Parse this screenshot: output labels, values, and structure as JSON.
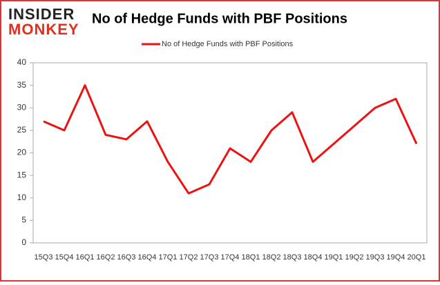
{
  "logo": {
    "line1": "INSIDER",
    "line2": "MONKEY"
  },
  "chart_data": {
    "type": "line",
    "title": "No of Hedge Funds with PBF Positions",
    "categories": [
      "15Q3",
      "15Q4",
      "16Q1",
      "16Q2",
      "16Q3",
      "16Q4",
      "17Q1",
      "17Q2",
      "17Q3",
      "17Q4",
      "18Q1",
      "18Q2",
      "18Q3",
      "18Q4",
      "19Q1",
      "19Q2",
      "19Q3",
      "19Q4",
      "20Q1"
    ],
    "series": [
      {
        "name": "No of Hedge Funds with PBF Positions",
        "color": "#ee1111",
        "values": [
          27,
          25,
          35,
          24,
          23,
          27,
          18,
          11,
          13,
          21,
          18,
          25,
          29,
          18,
          22,
          26,
          30,
          32,
          22
        ]
      }
    ],
    "ylim": [
      0,
      40
    ],
    "yticks": [
      0,
      5,
      10,
      15,
      20,
      25,
      30,
      35,
      40
    ],
    "grid": false,
    "legend": "top"
  }
}
